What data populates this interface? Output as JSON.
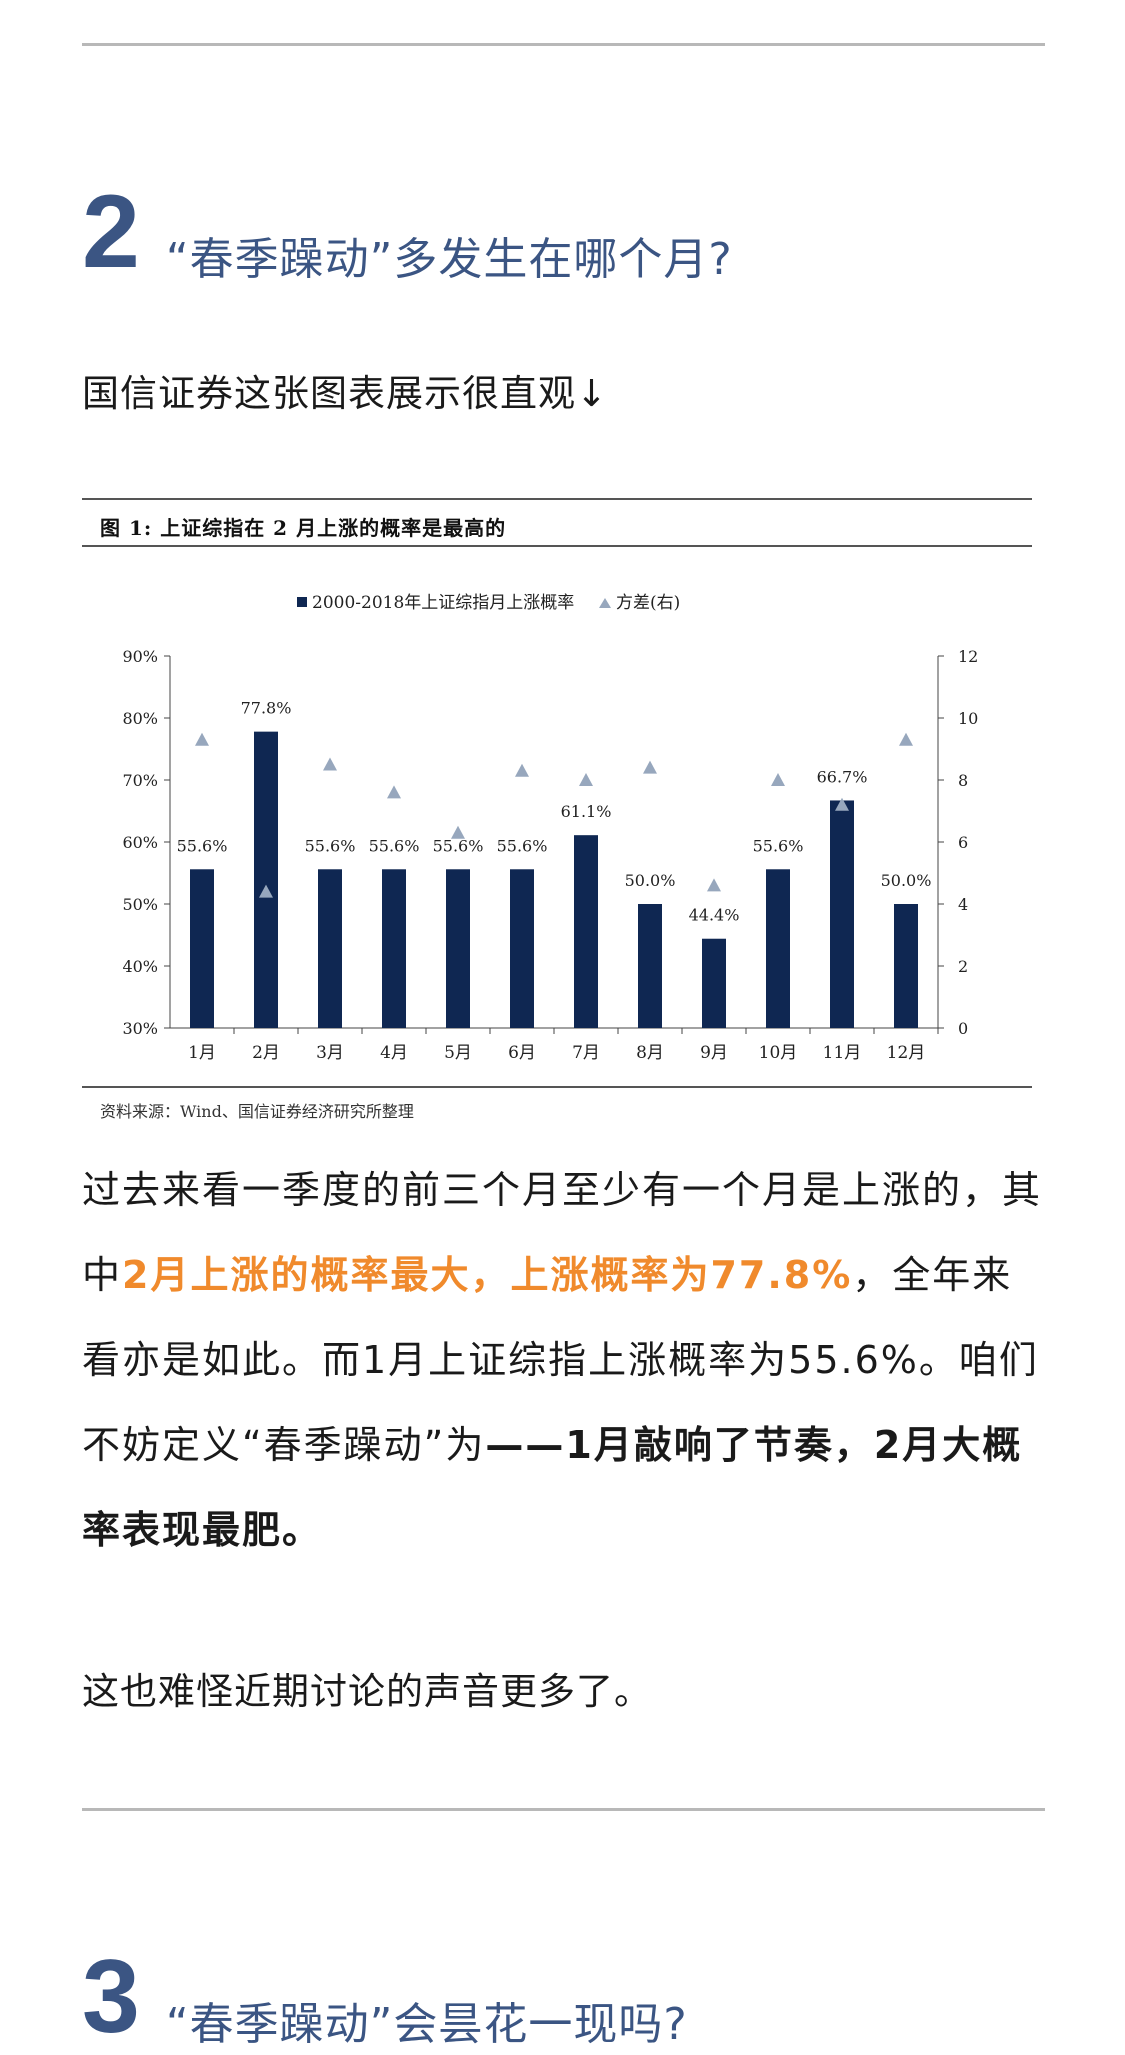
{
  "section2": {
    "number": "2",
    "title": "“春季躁动”多发生在哪个月?"
  },
  "intro": "国信证券这张图表展示很直观↓",
  "figure": {
    "title": "图  1:  上证综指在 2 月上涨的概率是最高的",
    "source": "资料来源：Wind、国信证券经济研究所整理"
  },
  "chart_data": {
    "type": "bar",
    "categories": [
      "1月",
      "2月",
      "3月",
      "4月",
      "5月",
      "6月",
      "7月",
      "8月",
      "9月",
      "10月",
      "11月",
      "12月"
    ],
    "series": [
      {
        "name": "2000-2018年上证综指月上涨概率",
        "type": "bar",
        "axis": "left",
        "color": "#0f2752",
        "values": [
          55.6,
          77.8,
          55.6,
          55.6,
          55.6,
          55.6,
          61.1,
          50.0,
          44.4,
          55.6,
          66.7,
          50.0
        ],
        "labels": [
          "55.6%",
          "77.8%",
          "55.6%",
          "55.6%",
          "55.6%",
          "55.6%",
          "61.1%",
          "50.0%",
          "44.4%",
          "55.6%",
          "66.7%",
          "50.0%"
        ]
      },
      {
        "name": "方差(右)",
        "type": "scatter",
        "marker": "triangle",
        "axis": "right",
        "color": "#97a7bd",
        "values": [
          9.3,
          4.4,
          8.5,
          7.6,
          6.3,
          8.3,
          8.0,
          8.4,
          4.6,
          8.0,
          7.2,
          9.3
        ]
      }
    ],
    "legend": [
      "2000-2018年上证综指月上涨概率",
      "方差(右)"
    ],
    "ylim": [
      30,
      90
    ],
    "yticks": [
      "30%",
      "40%",
      "50%",
      "60%",
      "70%",
      "80%",
      "90%"
    ],
    "y2lim": [
      0,
      12
    ],
    "y2ticks": [
      "0",
      "2",
      "4",
      "6",
      "8",
      "10",
      "12"
    ],
    "legend_position": "top-center",
    "grid": false
  },
  "para1": {
    "a": "过去来看一季度的前三个月至少有一个月是上涨的，其中",
    "b": "2月上涨的概率最大，上涨概率为77.8%",
    "c": "，全年来看亦是如此。而1月上证综指上涨概率为55.6%。咱们不妨定义“春季躁动”为",
    "d": "——1月敲响了节奏，2月大概率表现最肥。"
  },
  "para2": "这也难怪近期讨论的声音更多了。",
  "section3": {
    "number": "3",
    "title": "“春季躁动”会昙花一现吗?"
  },
  "colors": {
    "accent": "#3b5583",
    "highlight": "#f08a2c",
    "bar": "#0f2752",
    "marker": "#97a7bd"
  }
}
